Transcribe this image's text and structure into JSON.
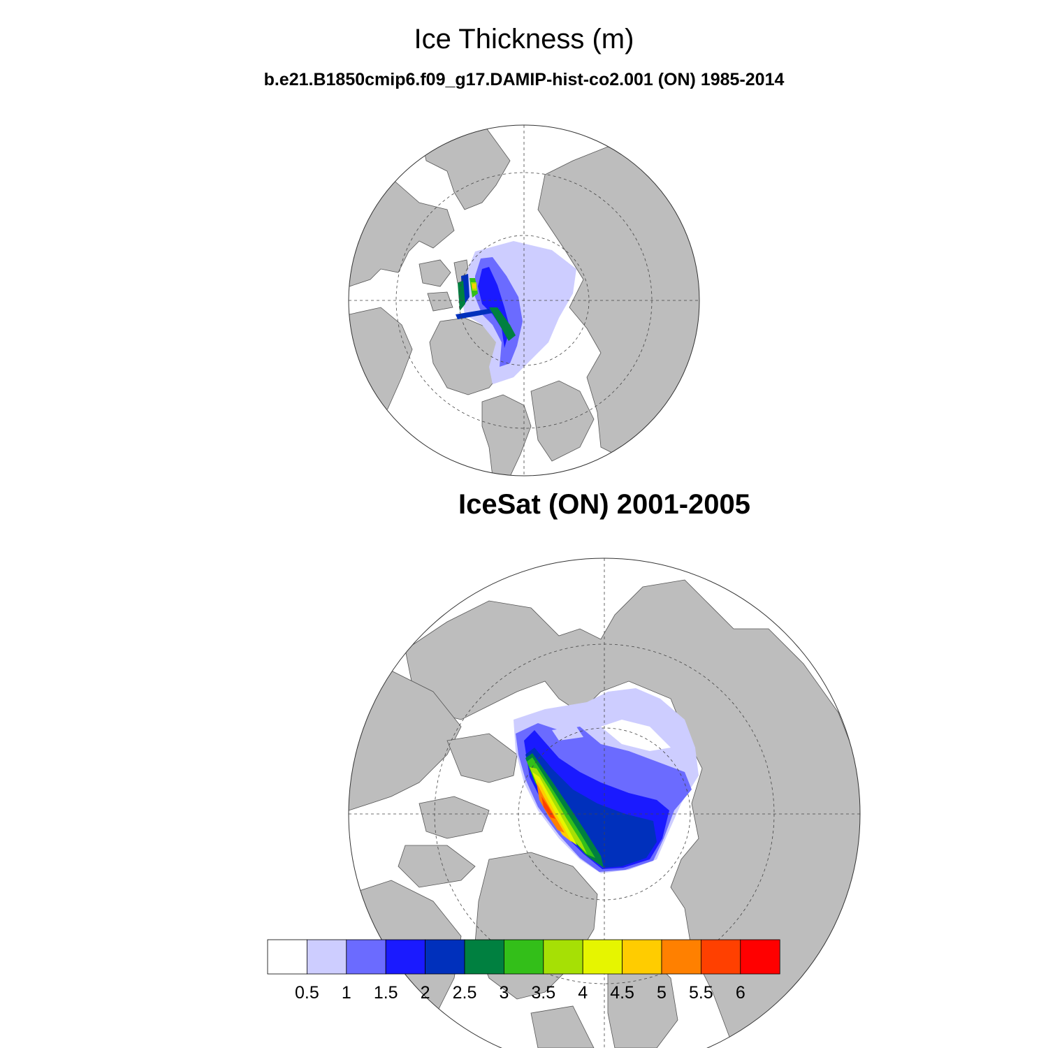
{
  "figure": {
    "title": "Ice Thickness (m)",
    "subtitle": "b.e21.B1850cmip6.f09_g17.DAMIP-hist-co2.001 (ON) 1985-2014",
    "panel2_title": "IceSat (ON) 2001-2005"
  },
  "colorbar": {
    "levels": [
      "0.5",
      "1",
      "1.5",
      "2",
      "2.5",
      "3",
      "3.5",
      "4",
      "4.5",
      "5",
      "5.5",
      "6"
    ],
    "colors": [
      "#ffffff",
      "#cdcdff",
      "#6b6bff",
      "#1a1aff",
      "#0030bc",
      "#008040",
      "#33bf19",
      "#a6e005",
      "#e6f500",
      "#ffcc00",
      "#ff8000",
      "#ff4000",
      "#ff0000"
    ]
  },
  "map_colors": {
    "land": "#bdbdbd",
    "ocean": "#ffffff"
  },
  "panels": [
    {
      "id": "model",
      "title_key": "subtitle"
    },
    {
      "id": "icesat",
      "title_key": "panel2_title"
    }
  ]
}
